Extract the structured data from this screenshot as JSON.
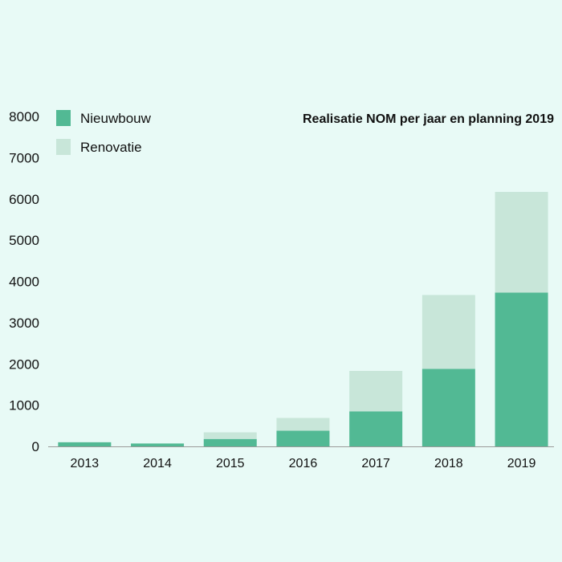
{
  "chart_data": {
    "type": "bar",
    "stacked": true,
    "title": "Realisatie NOM per jaar en planning 2019",
    "xlabel": "",
    "ylabel": "",
    "categories": [
      "2013",
      "2014",
      "2015",
      "2016",
      "2017",
      "2018",
      "2019"
    ],
    "series": [
      {
        "name": "Nieuwbouw",
        "color": "#52b994",
        "values": [
          100,
          70,
          180,
          380,
          850,
          1880,
          3730
        ]
      },
      {
        "name": "Renovatie",
        "color": "#c8e6d9",
        "values": [
          0,
          0,
          160,
          310,
          980,
          1790,
          2440
        ]
      }
    ],
    "ylim": [
      0,
      8000
    ],
    "yticks": [
      0,
      1000,
      2000,
      3000,
      4000,
      5000,
      6000,
      7000,
      8000
    ],
    "grid": false,
    "legend_position": "top-left",
    "background": "#e8faf6",
    "axis_color": "#9a9a9a"
  }
}
